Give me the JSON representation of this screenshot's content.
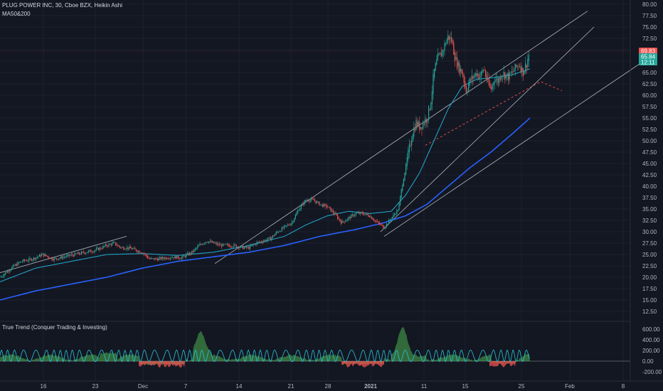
{
  "header": {
    "symbol_line": "PLUG POWER INC, 30, Cboe BZX, Heikin Ashi",
    "indicator_line": "MA50&200"
  },
  "lower_pane": {
    "title": "True Trend (Conquer Trading & Investing)",
    "axis_labels": [
      "600.00",
      "400.00",
      "200.00",
      "0.00",
      "-200.00"
    ]
  },
  "price_axis": {
    "labels": [
      "80.00",
      "77.50",
      "75.00",
      "72.50",
      "70.00",
      "67.50",
      "65.00",
      "62.50",
      "60.00",
      "57.50",
      "55.00",
      "52.50",
      "50.00",
      "47.50",
      "45.00",
      "42.50",
      "40.00",
      "37.50",
      "35.00",
      "32.50",
      "30.00",
      "27.50",
      "25.00",
      "22.50",
      "20.00",
      "17.50",
      "15.00",
      "12.50"
    ],
    "tags": [
      {
        "text": "69.83",
        "color": "#ef5350"
      },
      {
        "text": "65.84",
        "color": "#26a69a"
      },
      {
        "text": "12:11",
        "color": "#26a69a"
      }
    ]
  },
  "time_axis": {
    "labels": [
      "16",
      "23",
      "Dec",
      "7",
      "14",
      "21",
      "28",
      "2021",
      "11",
      "15",
      "25",
      "Feb",
      "8"
    ]
  },
  "colors": {
    "background": "#131722",
    "up_candle": "#26a69a",
    "down_candle": "#ef5350",
    "ma50": "#21a1c4",
    "ma200": "#2962ff",
    "trendline": "#d1d4dc",
    "dashed_line": "#ef5350",
    "hist_up": "#4caf50",
    "hist_down": "#ef5350",
    "oscillator": "#26c6da"
  },
  "chart_data": {
    "type": "candlestick",
    "symbol": "PLUG POWER INC",
    "interval": "30",
    "exchange": "Cboe BZX",
    "style": "Heikin Ashi",
    "price_range": [
      11,
      81
    ],
    "last_price": 69.83,
    "ma50_price": 65.84,
    "x_ticks": [
      "16",
      "23",
      "Dec",
      "7",
      "14",
      "21",
      "28",
      "2021",
      "11",
      "15",
      "25",
      "Feb",
      "8"
    ],
    "close_series": [
      [
        0,
        20
      ],
      [
        15,
        22
      ],
      [
        30,
        23.5
      ],
      [
        45,
        24
      ],
      [
        60,
        25
      ],
      [
        75,
        24
      ],
      [
        90,
        24.5
      ],
      [
        105,
        25
      ],
      [
        120,
        25.5
      ],
      [
        135,
        26
      ],
      [
        150,
        27
      ],
      [
        160,
        27.5
      ],
      [
        170,
        26.5
      ],
      [
        180,
        26.5
      ],
      [
        190,
        26
      ],
      [
        200,
        25.5
      ],
      [
        210,
        24
      ],
      [
        220,
        24
      ],
      [
        230,
        24.2
      ],
      [
        240,
        24.5
      ],
      [
        255,
        24.3
      ],
      [
        270,
        25.5
      ],
      [
        280,
        27
      ],
      [
        290,
        28
      ],
      [
        300,
        27.5
      ],
      [
        310,
        27
      ],
      [
        320,
        27
      ],
      [
        330,
        27
      ],
      [
        340,
        26.5
      ],
      [
        350,
        26.5
      ],
      [
        360,
        27.5
      ],
      [
        370,
        28
      ],
      [
        380,
        28.5
      ],
      [
        390,
        30
      ],
      [
        400,
        31
      ],
      [
        410,
        32
      ],
      [
        420,
        35
      ],
      [
        430,
        37
      ],
      [
        440,
        37
      ],
      [
        450,
        36
      ],
      [
        460,
        35.5
      ],
      [
        470,
        34
      ],
      [
        480,
        32
      ],
      [
        490,
        33
      ],
      [
        500,
        34
      ],
      [
        510,
        34
      ],
      [
        520,
        33.5
      ],
      [
        530,
        32
      ],
      [
        540,
        31
      ],
      [
        550,
        33
      ],
      [
        560,
        35
      ],
      [
        565,
        40
      ],
      [
        570,
        44
      ],
      [
        575,
        48
      ],
      [
        580,
        52
      ],
      [
        585,
        54
      ],
      [
        590,
        53
      ],
      [
        595,
        54
      ],
      [
        600,
        55
      ],
      [
        605,
        58
      ],
      [
        610,
        65
      ],
      [
        615,
        68
      ],
      [
        620,
        69
      ],
      [
        625,
        71
      ],
      [
        630,
        73
      ],
      [
        635,
        72
      ],
      [
        640,
        68
      ],
      [
        645,
        66
      ],
      [
        650,
        65
      ],
      [
        655,
        61
      ],
      [
        660,
        63
      ],
      [
        665,
        64
      ],
      [
        670,
        65
      ],
      [
        675,
        64
      ],
      [
        680,
        66
      ],
      [
        685,
        63
      ],
      [
        690,
        61
      ],
      [
        695,
        64
      ],
      [
        700,
        63
      ],
      [
        705,
        65
      ],
      [
        710,
        64.5
      ],
      [
        715,
        64
      ],
      [
        720,
        65
      ],
      [
        725,
        66
      ],
      [
        730,
        67
      ],
      [
        735,
        65
      ],
      [
        740,
        67
      ],
      [
        745,
        69.8
      ]
    ],
    "ma50_series": [
      [
        0,
        19
      ],
      [
        50,
        22
      ],
      [
        100,
        23.5
      ],
      [
        150,
        25
      ],
      [
        200,
        25.2
      ],
      [
        250,
        24.8
      ],
      [
        300,
        25.5
      ],
      [
        350,
        27
      ],
      [
        400,
        29
      ],
      [
        430,
        31.5
      ],
      [
        460,
        33.5
      ],
      [
        490,
        34.5
      ],
      [
        520,
        34
      ],
      [
        550,
        34.5
      ],
      [
        570,
        38
      ],
      [
        590,
        43
      ],
      [
        610,
        50
      ],
      [
        630,
        57
      ],
      [
        650,
        62
      ],
      [
        670,
        63.5
      ],
      [
        700,
        64
      ],
      [
        720,
        64.5
      ],
      [
        745,
        65.8
      ]
    ],
    "ma200_series": [
      [
        0,
        15
      ],
      [
        50,
        17
      ],
      [
        100,
        18.5
      ],
      [
        150,
        20
      ],
      [
        200,
        22
      ],
      [
        250,
        23.5
      ],
      [
        300,
        24.5
      ],
      [
        350,
        25.5
      ],
      [
        400,
        27
      ],
      [
        450,
        29
      ],
      [
        500,
        30.5
      ],
      [
        540,
        32
      ],
      [
        570,
        33.5
      ],
      [
        600,
        36
      ],
      [
        630,
        40
      ],
      [
        660,
        44
      ],
      [
        690,
        47.5
      ],
      [
        720,
        51.5
      ],
      [
        745,
        55
      ]
    ],
    "channel_lines": [
      {
        "from": [
          302,
          23
        ],
        "to": [
          826,
          78.5
        ]
      },
      {
        "from": [
          535,
          30
        ],
        "to": [
          835,
          75
        ]
      },
      {
        "from": [
          540,
          29
        ],
        "to": [
          900,
          67
        ]
      }
    ],
    "early_channel_line": {
      "from": [
        0,
        21
      ],
      "to": [
        178,
        29
      ]
    },
    "dashed_line": {
      "from": [
        598,
        49
      ],
      "to": [
        760,
        63
      ],
      "to2": [
        790,
        61
      ]
    },
    "true_trend_range": [
      -300,
      650
    ]
  }
}
